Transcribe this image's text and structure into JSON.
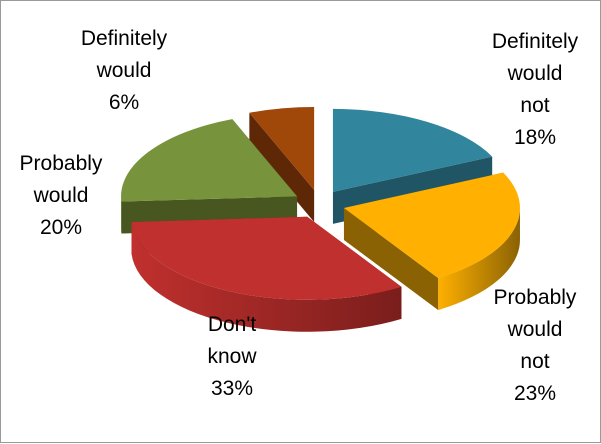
{
  "chart_data": {
    "type": "pie",
    "style": "3d-exploded",
    "title": "",
    "legend": "none",
    "slices": [
      {
        "label": "Definitely would not",
        "lines": [
          "Definitely",
          "would",
          "not"
        ],
        "value": 18,
        "value_label": "18%",
        "color": "#31859c",
        "side_color": "#1f5564",
        "name": "definitely-would-not"
      },
      {
        "label": "Probably would not",
        "lines": [
          "Probably",
          "would",
          "not"
        ],
        "value": 23,
        "value_label": "23%",
        "color": "#ffb000",
        "side_color": "#8a6204",
        "name": "probably-would-not"
      },
      {
        "label": "Don't know",
        "lines": [
          "Don't",
          "know"
        ],
        "value": 33,
        "value_label": "33%",
        "color": "#c0302e",
        "side_color": "#7a1e1c",
        "name": "dont-know"
      },
      {
        "label": "Probably would",
        "lines": [
          "Probably",
          "would"
        ],
        "value": 20,
        "value_label": "20%",
        "color": "#77933c",
        "side_color": "#48571f",
        "name": "probably-would"
      },
      {
        "label": "Definitely would",
        "lines": [
          "Definitely",
          "would"
        ],
        "value": 6,
        "value_label": "6%",
        "color": "#a0470a",
        "side_color": "#5e2806",
        "name": "definitely-would"
      }
    ]
  }
}
